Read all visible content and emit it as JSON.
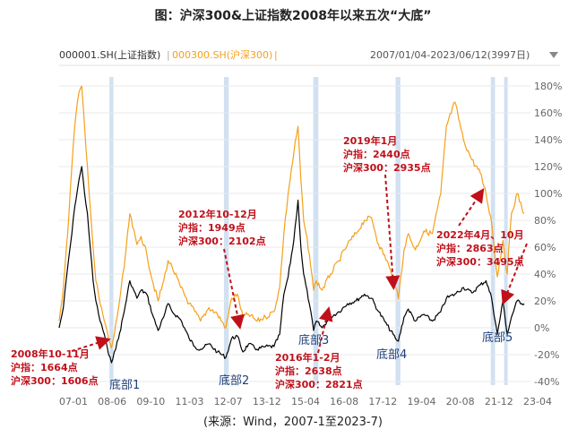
{
  "chart_data": {
    "type": "line",
    "title": "图：沪深300&上证指数2008年以来五次“大底”",
    "legend": {
      "series1": "000001.SH(上证指数)",
      "separator": "|",
      "series2": "000300.SH(沪深300)",
      "separator2": "|"
    },
    "date_range_label": "2007/01/04-2023/06/12(3997日)",
    "source": "(来源：Wind，2007-1至2023-7)",
    "x_labels": [
      "07-01",
      "08-06",
      "09-10",
      "11-03",
      "12-07",
      "13-12",
      "15-04",
      "16-08",
      "17-12",
      "19-04",
      "20-08",
      "21-12",
      "23-04"
    ],
    "y_labels": [
      "180%",
      "160%",
      "140%",
      "120%",
      "100%",
      "80%",
      "60%",
      "40%",
      "20%",
      "0%",
      "-20%",
      "-40%"
    ],
    "ylim": [
      -40,
      180
    ],
    "colors": {
      "sse": "#000000",
      "csi300": "#f5a01a",
      "highlight": "#c9dcef",
      "arrow": "#c0101a",
      "note": "#c0101a",
      "bottom_label": "#1f3f7a",
      "header_gray": "#555555"
    },
    "highlight_bands": [
      {
        "from": 2008.78,
        "to": 2008.92
      },
      {
        "from": 2012.83,
        "to": 2013.0
      },
      {
        "from": 2015.99,
        "to": 2016.17
      },
      {
        "from": 2018.9,
        "to": 2019.07
      },
      {
        "from": 2022.27,
        "to": 2022.42
      },
      {
        "from": 2022.74,
        "to": 2022.86
      }
    ],
    "series": [
      {
        "name": "上证指数",
        "color": "#000000",
        "x": [
          2007.0,
          2007.15,
          2007.3,
          2007.45,
          2007.55,
          2007.7,
          2007.8,
          2007.9,
          2008.0,
          2008.1,
          2008.2,
          2008.3,
          2008.45,
          2008.6,
          2008.75,
          2008.85,
          2008.95,
          2009.1,
          2009.3,
          2009.5,
          2009.6,
          2009.75,
          2009.9,
          2010.1,
          2010.3,
          2010.5,
          2010.7,
          2010.85,
          2011.0,
          2011.3,
          2011.6,
          2011.8,
          2012.0,
          2012.3,
          2012.6,
          2012.9,
          2013.1,
          2013.3,
          2013.5,
          2013.7,
          2014.0,
          2014.3,
          2014.6,
          2014.8,
          2014.95,
          2015.1,
          2015.3,
          2015.45,
          2015.55,
          2015.65,
          2015.85,
          2016.0,
          2016.1,
          2016.3,
          2016.6,
          2016.9,
          2017.2,
          2017.5,
          2017.8,
          2018.05,
          2018.3,
          2018.6,
          2018.9,
          2019.0,
          2019.2,
          2019.35,
          2019.6,
          2019.9,
          2020.2,
          2020.5,
          2020.7,
          2021.0,
          2021.3,
          2021.6,
          2021.9,
          2022.1,
          2022.3,
          2022.5,
          2022.7,
          2022.85,
          2023.0,
          2023.2,
          2023.45
        ],
        "values": [
          0,
          15,
          45,
          70,
          90,
          110,
          120,
          100,
          85,
          60,
          35,
          20,
          5,
          -5,
          -20,
          -26,
          -18,
          -8,
          12,
          35,
          30,
          22,
          28,
          25,
          10,
          -2,
          8,
          18,
          12,
          6,
          -8,
          -14,
          -16,
          -12,
          -18,
          -22,
          -8,
          -6,
          -18,
          -12,
          -16,
          -14,
          -14,
          -5,
          25,
          38,
          65,
          95,
          60,
          40,
          18,
          -2,
          5,
          0,
          8,
          12,
          18,
          20,
          25,
          22,
          12,
          2,
          -8,
          -10,
          8,
          14,
          5,
          10,
          5,
          12,
          22,
          25,
          30,
          26,
          32,
          35,
          22,
          -5,
          20,
          -5,
          8,
          20,
          18
        ]
      },
      {
        "name": "沪深300",
        "color": "#f5a01a",
        "x": [
          2007.0,
          2007.15,
          2007.3,
          2007.45,
          2007.55,
          2007.7,
          2007.8,
          2007.9,
          2008.0,
          2008.1,
          2008.2,
          2008.3,
          2008.45,
          2008.6,
          2008.75,
          2008.85,
          2008.95,
          2009.1,
          2009.3,
          2009.5,
          2009.6,
          2009.75,
          2009.9,
          2010.1,
          2010.3,
          2010.5,
          2010.7,
          2010.85,
          2011.0,
          2011.3,
          2011.6,
          2011.8,
          2012.0,
          2012.3,
          2012.6,
          2012.9,
          2013.1,
          2013.3,
          2013.5,
          2013.7,
          2014.0,
          2014.3,
          2014.6,
          2014.8,
          2014.95,
          2015.1,
          2015.3,
          2015.45,
          2015.55,
          2015.65,
          2015.85,
          2016.0,
          2016.1,
          2016.3,
          2016.6,
          2016.9,
          2017.2,
          2017.5,
          2017.8,
          2018.05,
          2018.3,
          2018.6,
          2018.9,
          2019.0,
          2019.2,
          2019.35,
          2019.6,
          2019.9,
          2020.2,
          2020.5,
          2020.7,
          2021.0,
          2021.3,
          2021.6,
          2021.9,
          2022.1,
          2022.3,
          2022.5,
          2022.7,
          2022.85,
          2023.0,
          2023.2,
          2023.45
        ],
        "values": [
          5,
          30,
          70,
          120,
          150,
          175,
          180,
          150,
          120,
          90,
          60,
          35,
          18,
          5,
          -8,
          -15,
          -5,
          15,
          45,
          85,
          75,
          62,
          68,
          55,
          35,
          20,
          35,
          50,
          45,
          30,
          18,
          12,
          5,
          15,
          10,
          0,
          22,
          25,
          8,
          10,
          5,
          8,
          12,
          30,
          70,
          100,
          130,
          150,
          110,
          80,
          55,
          28,
          35,
          28,
          40,
          50,
          62,
          70,
          80,
          82,
          62,
          50,
          30,
          22,
          58,
          70,
          58,
          72,
          70,
          100,
          150,
          168,
          140,
          125,
          115,
          100,
          78,
          38,
          65,
          40,
          85,
          100,
          85
        ]
      }
    ],
    "annotations": [
      {
        "lines": [
          "2008年10-11月",
          "沪指：1664点",
          "沪深300：1606点"
        ]
      },
      {
        "lines": [
          "2012年10-12月",
          "沪指：1949点",
          "沪深300：2102点"
        ]
      },
      {
        "lines": [
          "2016年1-2月",
          "沪指：2638点",
          "沪深300：2821点"
        ]
      },
      {
        "lines": [
          "2019年1月",
          "沪指：2440点",
          "沪深300：2935点"
        ]
      },
      {
        "lines": [
          "2022年4月、10月",
          "沪指：2863点",
          "沪深300：3495点"
        ]
      }
    ],
    "bottom_labels": [
      "底部1",
      "底部2",
      "底部3",
      "底部4",
      "底部5"
    ]
  }
}
